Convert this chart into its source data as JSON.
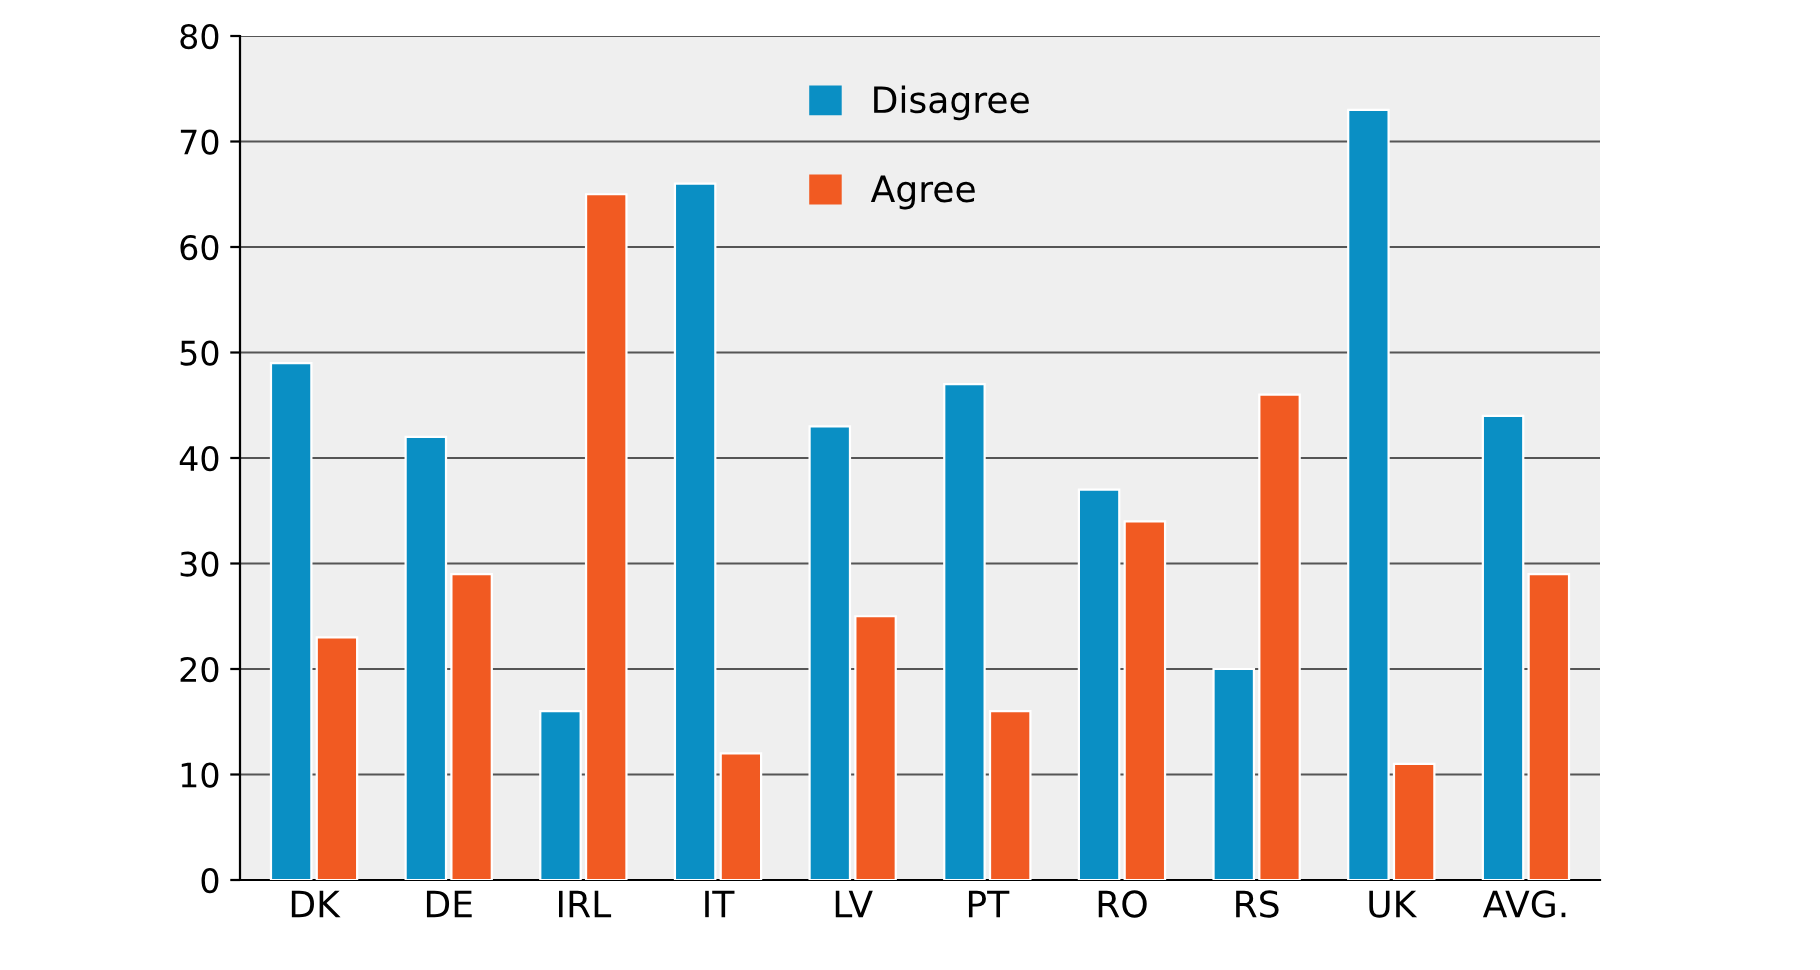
{
  "chart_data": {
    "type": "bar",
    "categories": [
      "DK",
      "DE",
      "IRL",
      "IT",
      "LV",
      "PT",
      "RO",
      "RS",
      "UK",
      "AVG."
    ],
    "series": [
      {
        "name": "Disagree",
        "color": "#0a8fc4",
        "values": [
          49,
          42,
          16,
          66,
          43,
          47,
          37,
          20,
          73,
          44
        ]
      },
      {
        "name": "Agree",
        "color": "#f15a22",
        "values": [
          23,
          29,
          65,
          12,
          25,
          16,
          34,
          46,
          11,
          29
        ]
      }
    ],
    "ylim": [
      0,
      80
    ],
    "yticks": [
      0,
      10,
      20,
      30,
      40,
      50,
      60,
      70,
      80
    ],
    "grid": "y",
    "legend": "top"
  }
}
